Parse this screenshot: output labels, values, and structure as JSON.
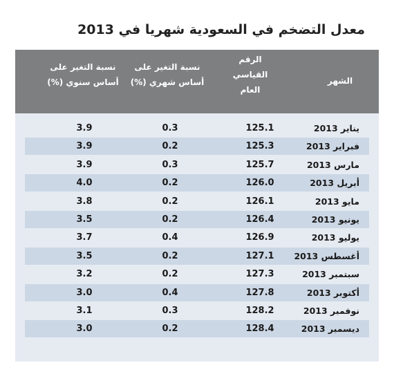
{
  "title": "معدل التضخم في السعودية شهريا في 2013",
  "headers": {
    "month": "الشهر",
    "index_line1": "الرقم",
    "index_line2": "القياسي",
    "index_line3": "العام",
    "mom_line1": "نسبة التغير على",
    "mom_line2": "أساس شهري (%)",
    "yoy_line1": "نسبة التغير على",
    "yoy_line2": "أساس سنوي (%)"
  },
  "rows": [
    {
      "month": "يناير 2013",
      "index": "125.1",
      "mom": "0.3",
      "yoy": "3.9"
    },
    {
      "month": "فبراير 2013",
      "index": "125.3",
      "mom": "0.2",
      "yoy": "3.9"
    },
    {
      "month": "مارس 2013",
      "index": "125.7",
      "mom": "0.3",
      "yoy": "3.9"
    },
    {
      "month": "أبريل 2013",
      "index": "126.0",
      "mom": "0.2",
      "yoy": "4.0"
    },
    {
      "month": "مايو 2013",
      "index": "126.1",
      "mom": "0.2",
      "yoy": "3.8"
    },
    {
      "month": "يونيو 2013",
      "index": "126.4",
      "mom": "0.2",
      "yoy": "3.5"
    },
    {
      "month": "يوليو 2013",
      "index": "126.9",
      "mom": "0.4",
      "yoy": "3.7"
    },
    {
      "month": "أغسطس 2013",
      "index": "127.1",
      "mom": "0.2",
      "yoy": "3.5"
    },
    {
      "month": "سبتمبر 2013",
      "index": "127.3",
      "mom": "0.2",
      "yoy": "3.2"
    },
    {
      "month": "أكتوبر 2013",
      "index": "127.8",
      "mom": "0.4",
      "yoy": "3.0"
    },
    {
      "month": "نوفمبر 2013",
      "index": "128.2",
      "mom": "0.3",
      "yoy": "3.1"
    },
    {
      "month": "ديسمبر 2013",
      "index": "128.4",
      "mom": "0.2",
      "yoy": "3.0"
    }
  ],
  "colors": {
    "header_bg": "#7d7f81",
    "card_bg": "#e6ebf2",
    "row_shade": "#ccd7e5"
  }
}
